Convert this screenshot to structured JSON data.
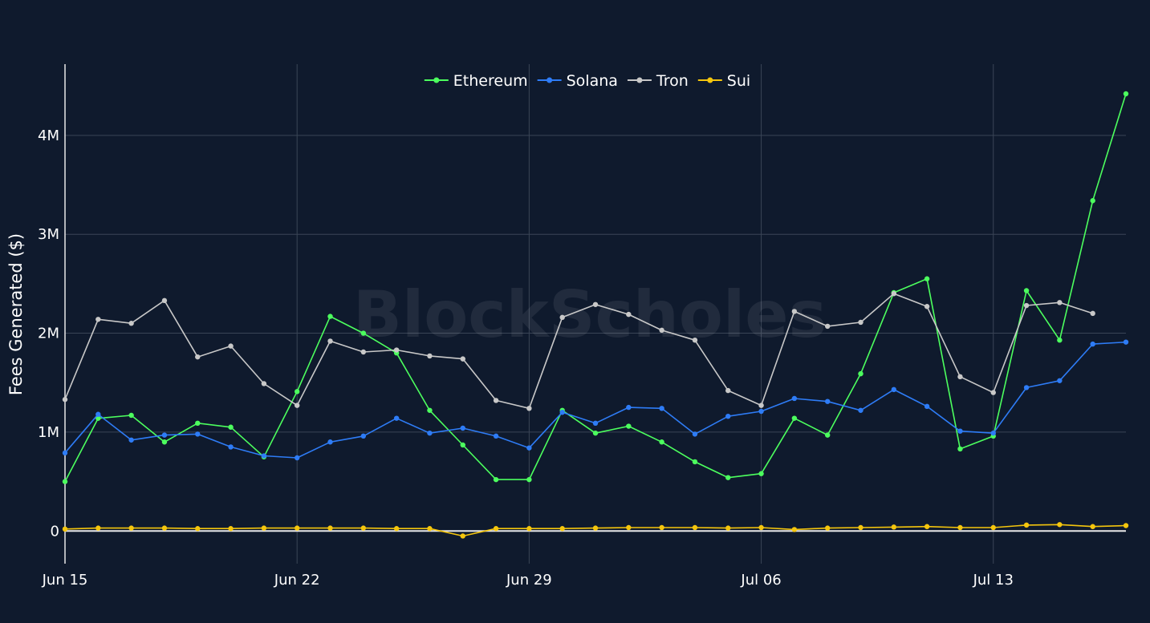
{
  "watermark": "BlockScholes",
  "chart_data": {
    "type": "line",
    "ylabel": "Fees Generated ($)",
    "xlabel": "",
    "x_ticks": [
      "Jun 15",
      "Jun 22",
      "Jun 29",
      "Jul 06",
      "Jul 13"
    ],
    "y_ticks": [
      "0",
      "1M",
      "2M",
      "3M",
      "4M"
    ],
    "y_tick_values": [
      0,
      1000000,
      2000000,
      3000000,
      4000000
    ],
    "xlim": [
      "2025-06-15",
      "2025-07-17"
    ],
    "ylim": [
      -330000,
      4720000
    ],
    "grid": true,
    "legend": "top-center",
    "x": [
      "2025-06-15",
      "2025-06-16",
      "2025-06-17",
      "2025-06-18",
      "2025-06-19",
      "2025-06-20",
      "2025-06-21",
      "2025-06-22",
      "2025-06-23",
      "2025-06-24",
      "2025-06-25",
      "2025-06-26",
      "2025-06-27",
      "2025-06-28",
      "2025-06-29",
      "2025-06-30",
      "2025-07-01",
      "2025-07-02",
      "2025-07-03",
      "2025-07-04",
      "2025-07-05",
      "2025-07-06",
      "2025-07-07",
      "2025-07-08",
      "2025-07-09",
      "2025-07-10",
      "2025-07-11",
      "2025-07-12",
      "2025-07-13",
      "2025-07-14",
      "2025-07-15",
      "2025-07-16",
      "2025-07-17"
    ],
    "series": [
      {
        "name": "Ethereum",
        "color": "#4cff5e",
        "values": [
          500000,
          1140000,
          1170000,
          900000,
          1090000,
          1050000,
          750000,
          1410000,
          2170000,
          2000000,
          1800000,
          1220000,
          870000,
          520000,
          520000,
          1220000,
          990000,
          1060000,
          900000,
          700000,
          540000,
          580000,
          1140000,
          970000,
          1590000,
          2410000,
          2550000,
          830000,
          960000,
          2430000,
          1930000,
          3340000,
          4420000
        ]
      },
      {
        "name": "Solana",
        "color": "#2e7cf6",
        "values": [
          790000,
          1180000,
          920000,
          970000,
          980000,
          850000,
          760000,
          740000,
          900000,
          960000,
          1140000,
          990000,
          1040000,
          960000,
          840000,
          1200000,
          1090000,
          1250000,
          1240000,
          980000,
          1160000,
          1210000,
          1340000,
          1310000,
          1220000,
          1430000,
          1260000,
          1010000,
          990000,
          1450000,
          1520000,
          1890000,
          1910000
        ]
      },
      {
        "name": "Tron",
        "color": "#c8c8c8",
        "values": [
          1330000,
          2140000,
          2100000,
          2330000,
          1760000,
          1870000,
          1490000,
          1270000,
          1920000,
          1810000,
          1830000,
          1770000,
          1740000,
          1320000,
          1240000,
          2160000,
          2290000,
          2190000,
          2030000,
          1930000,
          1420000,
          1270000,
          2220000,
          2070000,
          2110000,
          2400000,
          2270000,
          1560000,
          1400000,
          2280000,
          2310000,
          2200000,
          null
        ]
      },
      {
        "name": "Sui",
        "color": "#f5c60d",
        "values": [
          20000,
          30000,
          30000,
          30000,
          25000,
          25000,
          30000,
          30000,
          30000,
          30000,
          25000,
          25000,
          -50000,
          25000,
          25000,
          25000,
          30000,
          35000,
          35000,
          35000,
          30000,
          35000,
          15000,
          30000,
          35000,
          40000,
          45000,
          35000,
          35000,
          60000,
          65000,
          45000,
          55000
        ]
      }
    ]
  }
}
